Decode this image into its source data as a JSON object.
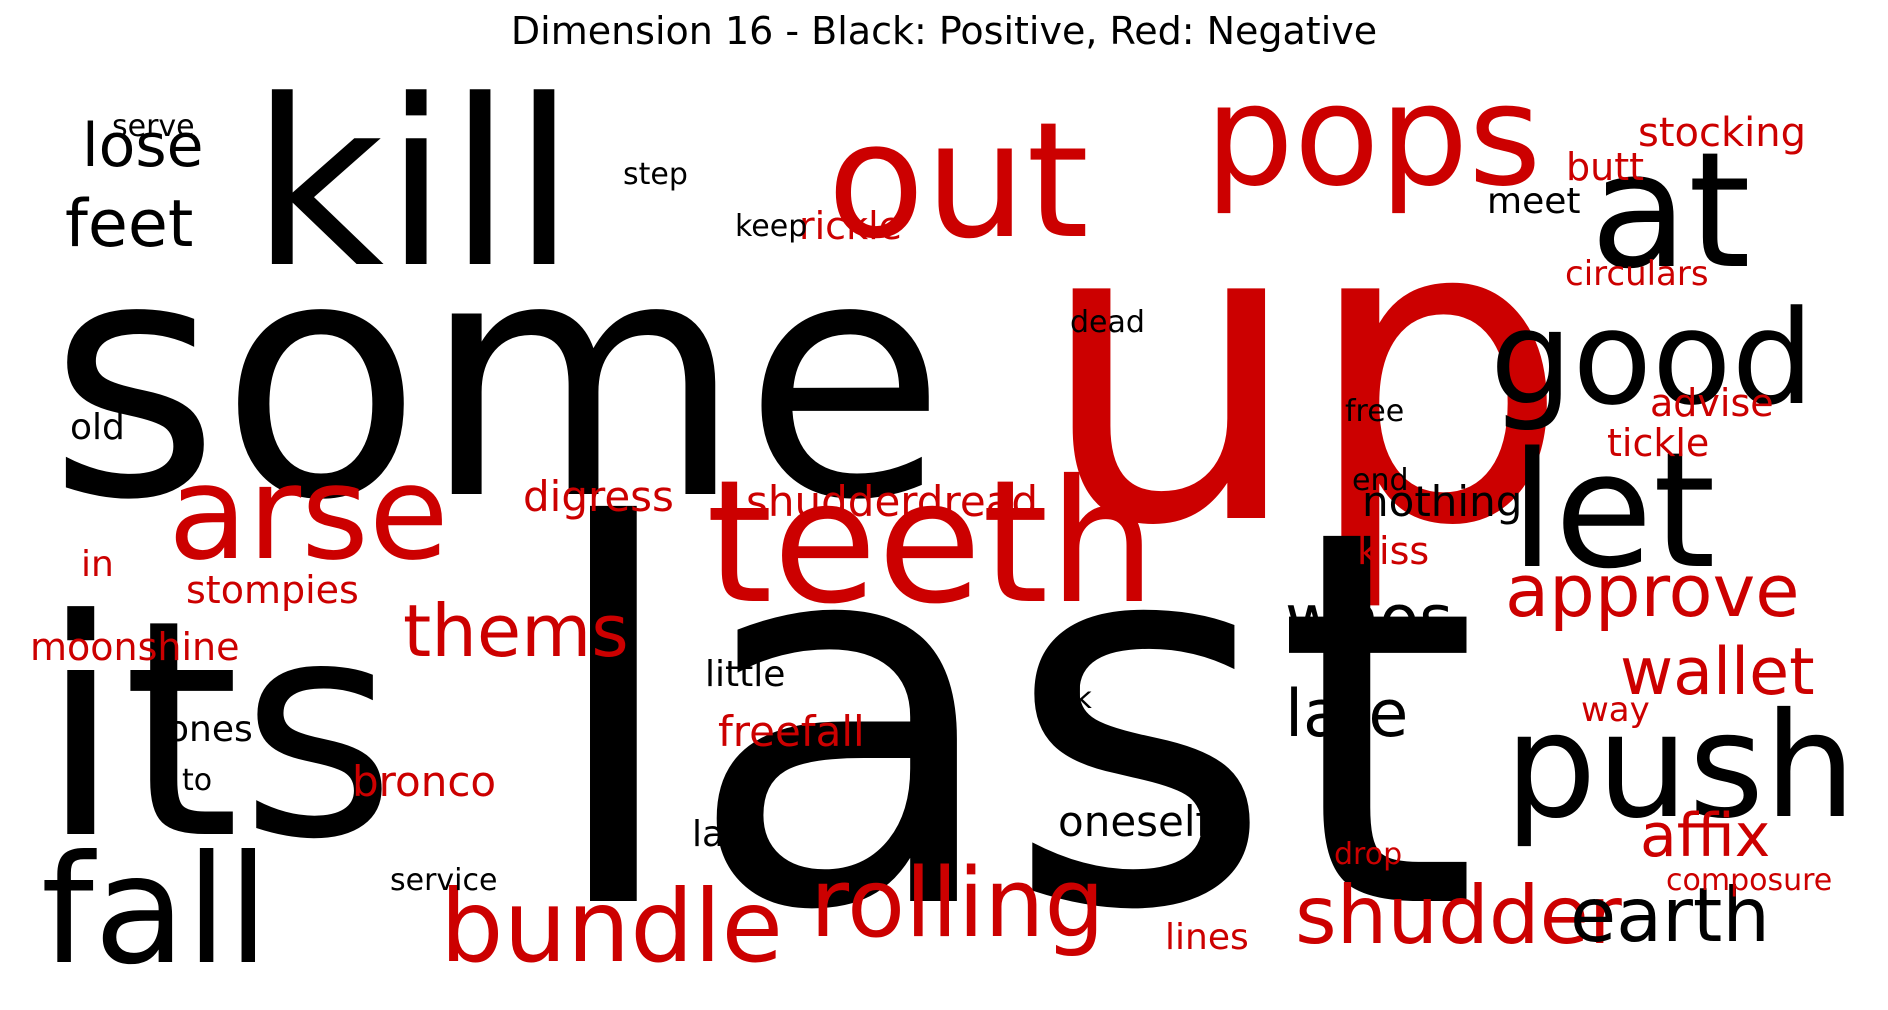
{
  "title": "Dimension 16 - Black: Positive, Red: Negative",
  "colors": {
    "positive": "#000000",
    "negative": "#cc0000"
  },
  "words": [
    {
      "text": "up",
      "polarity": "negative"
    },
    {
      "text": "last",
      "polarity": "positive"
    },
    {
      "text": "some",
      "polarity": "positive"
    },
    {
      "text": "its",
      "polarity": "positive"
    },
    {
      "text": "kill",
      "polarity": "positive"
    },
    {
      "text": "out",
      "polarity": "negative"
    },
    {
      "text": "pops",
      "polarity": "negative"
    },
    {
      "text": "teeth",
      "polarity": "negative"
    },
    {
      "text": "at",
      "polarity": "positive"
    },
    {
      "text": "good",
      "polarity": "positive"
    },
    {
      "text": "let",
      "polarity": "positive"
    },
    {
      "text": "push",
      "polarity": "positive"
    },
    {
      "text": "fall",
      "polarity": "positive"
    },
    {
      "text": "arse",
      "polarity": "negative"
    },
    {
      "text": "bundle",
      "polarity": "negative"
    },
    {
      "text": "rolling",
      "polarity": "negative"
    },
    {
      "text": "approve",
      "polarity": "negative"
    },
    {
      "text": "shudder",
      "polarity": "negative"
    },
    {
      "text": "earth",
      "polarity": "positive"
    },
    {
      "text": "thems",
      "polarity": "negative"
    },
    {
      "text": "wallet",
      "polarity": "negative"
    },
    {
      "text": "whos",
      "polarity": "positive"
    },
    {
      "text": "late",
      "polarity": "positive"
    },
    {
      "text": "affix",
      "polarity": "negative"
    },
    {
      "text": "feet",
      "polarity": "positive"
    },
    {
      "text": "lose",
      "polarity": "positive"
    },
    {
      "text": "shudderdread",
      "polarity": "negative"
    },
    {
      "text": "oneself",
      "polarity": "positive"
    },
    {
      "text": "digress",
      "polarity": "negative"
    },
    {
      "text": "bronco",
      "polarity": "negative"
    },
    {
      "text": "freefall",
      "polarity": "negative"
    },
    {
      "text": "nothing",
      "polarity": "positive"
    },
    {
      "text": "moonshine",
      "polarity": "negative"
    },
    {
      "text": "stompies",
      "polarity": "negative"
    },
    {
      "text": "stocking",
      "polarity": "negative"
    },
    {
      "text": "rickle",
      "polarity": "negative"
    },
    {
      "text": "circulars",
      "polarity": "negative"
    },
    {
      "text": "advise",
      "polarity": "negative"
    },
    {
      "text": "tickle",
      "polarity": "negative"
    },
    {
      "text": "kiss",
      "polarity": "negative"
    },
    {
      "text": "butt",
      "polarity": "negative"
    },
    {
      "text": "meet",
      "polarity": "positive"
    },
    {
      "text": "ones",
      "polarity": "positive"
    },
    {
      "text": "little",
      "polarity": "positive"
    },
    {
      "text": "lines",
      "polarity": "negative"
    },
    {
      "text": "lay",
      "polarity": "positive"
    },
    {
      "text": "old",
      "polarity": "positive"
    },
    {
      "text": "in",
      "polarity": "negative"
    },
    {
      "text": "way",
      "polarity": "negative"
    },
    {
      "text": "composure",
      "polarity": "negative"
    },
    {
      "text": "service",
      "polarity": "positive"
    },
    {
      "text": "drop",
      "polarity": "negative"
    },
    {
      "text": "serve",
      "polarity": "positive"
    },
    {
      "text": "step",
      "polarity": "positive"
    },
    {
      "text": "keep",
      "polarity": "positive"
    },
    {
      "text": "dead",
      "polarity": "positive"
    },
    {
      "text": "free",
      "polarity": "positive"
    },
    {
      "text": "end",
      "polarity": "positive"
    },
    {
      "text": "sick",
      "polarity": "positive"
    },
    {
      "text": "to",
      "polarity": "positive"
    }
  ]
}
